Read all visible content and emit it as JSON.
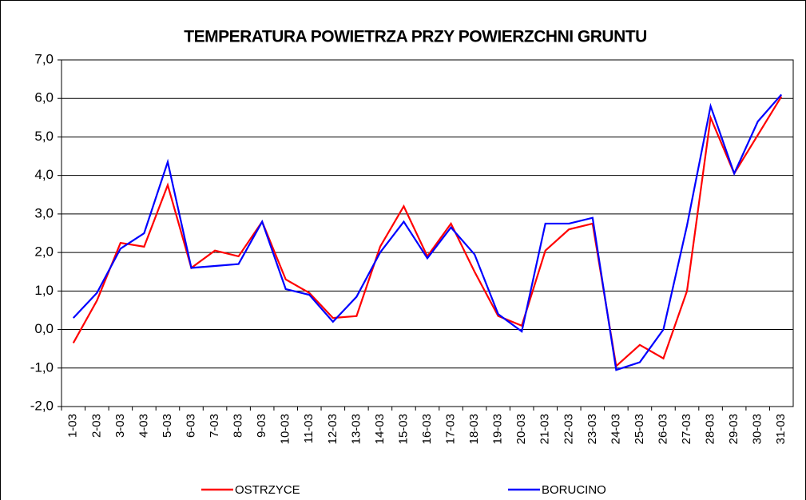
{
  "chart_data": {
    "type": "line",
    "title": "TEMPERATURA POWIETRZA PRZY POWIERZCHNI GRUNTU",
    "categories": [
      "1-03",
      "2-03",
      "3-03",
      "4-03",
      "5-03",
      "6-03",
      "7-03",
      "8-03",
      "9-03",
      "10-03",
      "11-03",
      "12-03",
      "13-03",
      "14-03",
      "15-03",
      "16-03",
      "17-03",
      "18-03",
      "19-03",
      "20-03",
      "21-03",
      "22-03",
      "23-03",
      "24-03",
      "25-03",
      "26-03",
      "27-03",
      "28-03",
      "29-03",
      "30-03",
      "31-03"
    ],
    "series": [
      {
        "name": "OSTRZYCE",
        "color": "#ff0000",
        "values": [
          -0.35,
          0.75,
          2.25,
          2.15,
          3.75,
          1.6,
          2.05,
          1.9,
          2.8,
          1.3,
          0.95,
          0.3,
          0.35,
          2.15,
          3.2,
          1.9,
          2.75,
          1.5,
          0.35,
          0.1,
          2.05,
          2.6,
          2.75,
          -0.95,
          -0.4,
          -0.75,
          1.0,
          5.5,
          4.05,
          5.05,
          6.05
        ]
      },
      {
        "name": "BORUCINO",
        "color": "#0000ff",
        "values": [
          0.3,
          0.95,
          2.1,
          2.5,
          4.35,
          1.6,
          1.65,
          1.7,
          2.8,
          1.05,
          0.9,
          0.2,
          0.85,
          2.0,
          2.8,
          1.85,
          2.65,
          1.95,
          0.4,
          -0.05,
          2.75,
          2.75,
          2.9,
          -1.05,
          -0.85,
          0.0,
          2.7,
          5.8,
          4.05,
          5.4,
          6.1
        ]
      }
    ],
    "ylim": [
      -2,
      7
    ],
    "yticks": [
      {
        "value": -2,
        "label": "-2,0"
      },
      {
        "value": -1,
        "label": "-1,0"
      },
      {
        "value": 0,
        "label": "0,0"
      },
      {
        "value": 1,
        "label": "1,0"
      },
      {
        "value": 2,
        "label": "2,0"
      },
      {
        "value": 3,
        "label": "3,0"
      },
      {
        "value": 4,
        "label": "4,0"
      },
      {
        "value": 5,
        "label": "5,0"
      },
      {
        "value": 6,
        "label": "6,0"
      },
      {
        "value": 7,
        "label": "7,0"
      }
    ],
    "grid": true,
    "legend": "bottom"
  }
}
